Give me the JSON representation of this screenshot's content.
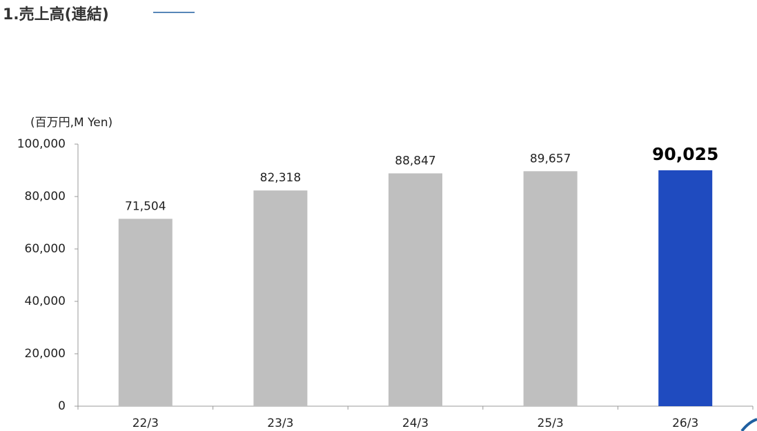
{
  "chart_data": {
    "type": "bar",
    "title": "1.売上高(連結)",
    "y_axis_label": "(百万円,M Yen)",
    "categories": [
      "22/3",
      "23/3",
      "24/3",
      "25/3",
      "26/3"
    ],
    "values": [
      71504,
      82318,
      88847,
      89657,
      90025
    ],
    "value_labels": [
      "71,504",
      "82,318",
      "88,847",
      "89,657",
      "90,025"
    ],
    "colors": [
      "#bfbfbf",
      "#bfbfbf",
      "#bfbfbf",
      "#bfbfbf",
      "#1f4bbf"
    ],
    "ylim": [
      0,
      100000
    ],
    "yticks": [
      0,
      {
        "value": 20000,
        "label": "20,000"
      },
      {
        "value": 40000,
        "label": "40,000"
      },
      {
        "value": 60000,
        "label": "60,000"
      },
      {
        "value": 80000,
        "label": "80,000"
      },
      {
        "value": 100000,
        "label": "100,000"
      }
    ],
    "grid": false
  }
}
